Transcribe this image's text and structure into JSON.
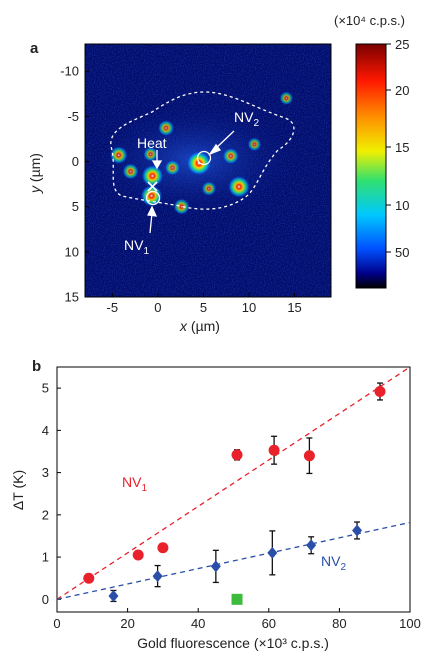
{
  "panels": {
    "a": "a",
    "b": "b"
  },
  "colorbar": {
    "unit": "(×10⁴ c.p.s.)",
    "ticks": [
      "25",
      "20",
      "15",
      "10",
      "50"
    ]
  },
  "chart_data": [
    {
      "type": "heatmap",
      "panel": "a",
      "xlabel_var": "x",
      "ylabel_var": "y",
      "axis_unit": " (µm)",
      "xlim": [
        -8,
        19
      ],
      "ylim": [
        15,
        -13
      ],
      "x_ticks": [
        -5,
        0,
        5,
        10,
        15
      ],
      "y_ticks": [
        -10,
        -5,
        0,
        5,
        10,
        15
      ],
      "annotations": {
        "heat": "Heat",
        "nv1": {
          "main": "NV",
          "sub": "1"
        },
        "nv2": {
          "main": "NV",
          "sub": "2"
        }
      },
      "spots": [
        {
          "x": 4.5,
          "y": 0.2,
          "intensity": 1.0
        },
        {
          "x": -0.7,
          "y": 3.8,
          "intensity": 0.85
        },
        {
          "x": -0.6,
          "y": 1.6,
          "intensity": 0.85
        },
        {
          "x": 8.9,
          "y": 2.8,
          "intensity": 0.85
        },
        {
          "x": -4.3,
          "y": -0.7,
          "intensity": 0.6
        },
        {
          "x": -3.0,
          "y": 1.1,
          "intensity": 0.5
        },
        {
          "x": 0.9,
          "y": -3.7,
          "intensity": 0.5
        },
        {
          "x": 1.6,
          "y": 0.7,
          "intensity": 0.45
        },
        {
          "x": 8.0,
          "y": -0.6,
          "intensity": 0.5
        },
        {
          "x": 2.6,
          "y": 5.0,
          "intensity": 0.5
        },
        {
          "x": 5.6,
          "y": 3.0,
          "intensity": 0.4
        },
        {
          "x": 10.6,
          "y": -1.9,
          "intensity": 0.35
        },
        {
          "x": 14.1,
          "y": -7.0,
          "intensity": 0.35
        },
        {
          "x": -0.8,
          "y": -0.8,
          "intensity": 0.4
        }
      ]
    },
    {
      "type": "scatter",
      "panel": "b",
      "xlabel": "Gold fluorescence (×10³ c.p.s.)",
      "ylabel": "ΔT (K)",
      "xlim": [
        0,
        100
      ],
      "ylim": [
        -0.3,
        5.5
      ],
      "x_ticks": [
        0,
        20,
        40,
        60,
        80,
        100
      ],
      "y_ticks": [
        0,
        1,
        2,
        3,
        4,
        5
      ],
      "series": [
        {
          "name": "NV1",
          "label": {
            "main": "NV",
            "sub": "1"
          },
          "color": "#e8212b",
          "marker": "circle",
          "fit": {
            "slope": 0.055,
            "intercept": 0
          },
          "points": [
            {
              "x": 9,
              "y": 0.5,
              "err": 0
            },
            {
              "x": 23,
              "y": 1.05,
              "err": 0
            },
            {
              "x": 30,
              "y": 1.22,
              "err": 0
            },
            {
              "x": 51,
              "y": 3.42,
              "err": 0.12
            },
            {
              "x": 61.5,
              "y": 3.53,
              "err": 0.33
            },
            {
              "x": 71.5,
              "y": 3.4,
              "err": 0.42
            },
            {
              "x": 91.5,
              "y": 4.92,
              "err": 0.2
            }
          ]
        },
        {
          "name": "NV2",
          "label": {
            "main": "NV",
            "sub": "2"
          },
          "color": "#2b4fa8",
          "marker": "diamond",
          "fit": {
            "slope": 0.0182,
            "intercept": 0
          },
          "points": [
            {
              "x": 16,
              "y": 0.08,
              "err": 0.13
            },
            {
              "x": 28.5,
              "y": 0.55,
              "err": 0.25
            },
            {
              "x": 45,
              "y": 0.78,
              "err": 0.38
            },
            {
              "x": 61,
              "y": 1.1,
              "err": 0.52
            },
            {
              "x": 72,
              "y": 1.28,
              "err": 0.2
            },
            {
              "x": 85,
              "y": 1.63,
              "err": 0.2
            }
          ]
        },
        {
          "name": "",
          "color": "#3dbb3d",
          "marker": "square",
          "points": [
            {
              "x": 51,
              "y": 0.0,
              "err": 0
            }
          ]
        }
      ]
    }
  ]
}
